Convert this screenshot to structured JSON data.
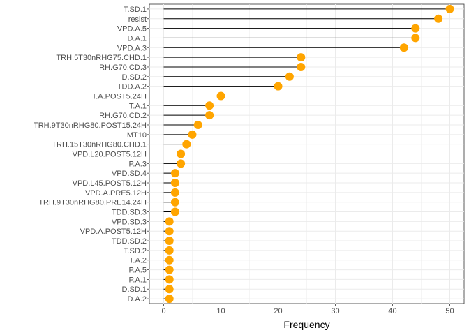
{
  "chart_data": {
    "type": "lollipop",
    "orientation": "horizontal",
    "title": "",
    "xlabel": "Frequency",
    "ylabel": "",
    "xlim": [
      -2.5,
      52.5
    ],
    "xticks": [
      0,
      10,
      20,
      30,
      40,
      50
    ],
    "xtick_labels": [
      "0",
      "10",
      "20",
      "30",
      "40",
      "50"
    ],
    "grid": true,
    "legend": "none",
    "point_color": "#FFA500",
    "stem_color": "#000000",
    "categories": [
      "T.SD.1",
      "resist",
      "VPD.A.5",
      "D.A.1",
      "VPD.A.3",
      "TRH.5T30nRHG75.CHD.1",
      "RH.G70.CD.3",
      "D.SD.2",
      "TDD.A.2",
      "T.A.POST5.24H",
      "T.A.1",
      "RH.G70.CD.2",
      "TRH.9T30nRHG80.POST15.24H",
      "MT10",
      "TRH.15T30nRHG80.CHD.1",
      "VPD.L20.POST5.12H",
      "P.A.3",
      "VPD.SD.4",
      "VPD.L45.POST5.12H",
      "VPD.A.PRE5.12H",
      "TRH.9T30nRHG80.PRE14.24H",
      "TDD.SD.3",
      "VPD.SD.3",
      "VPD.A.POST5.12H",
      "TDD.SD.2",
      "T.SD.2",
      "T.A.2",
      "P.A.5",
      "P.A.1",
      "D.SD.1",
      "D.A.2"
    ],
    "values": [
      50,
      48,
      44,
      44,
      42,
      24,
      24,
      22,
      20,
      10,
      8,
      8,
      6,
      5,
      4,
      3,
      3,
      2,
      2,
      2,
      2,
      2,
      1,
      1,
      1,
      1,
      1,
      1,
      1,
      1,
      1
    ]
  }
}
